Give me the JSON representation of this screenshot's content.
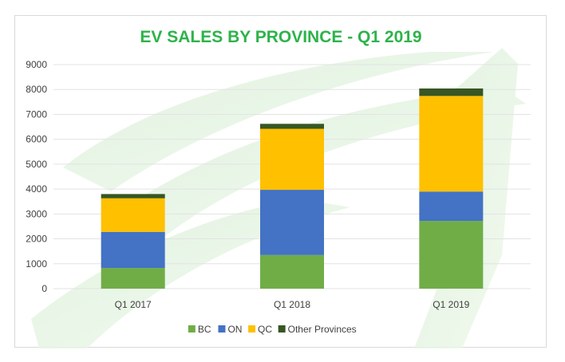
{
  "chart_data": {
    "type": "bar",
    "stacked": true,
    "title": "EV SALES BY PROVINCE - Q1 2019",
    "xlabel": "",
    "ylabel": "",
    "ylim": [
      0,
      9000
    ],
    "yticks": [
      "0",
      "1000",
      "2000",
      "3000",
      "4000",
      "5000",
      "6000",
      "7000",
      "8000",
      "9000"
    ],
    "categories": [
      "Q1 2017",
      "Q1 2018",
      "Q1 2019"
    ],
    "series": [
      {
        "name": "BC",
        "color": "#70ad47",
        "values": [
          830,
          1350,
          2720
        ]
      },
      {
        "name": "ON",
        "color": "#4472c4",
        "values": [
          1450,
          2620,
          1180
        ]
      },
      {
        "name": "QC",
        "color": "#ffc000",
        "values": [
          1350,
          2450,
          3840
        ]
      },
      {
        "name": "Other Provinces",
        "color": "#375623",
        "values": [
          170,
          200,
          300
        ]
      }
    ],
    "grid": true,
    "legend_position": "bottom"
  }
}
